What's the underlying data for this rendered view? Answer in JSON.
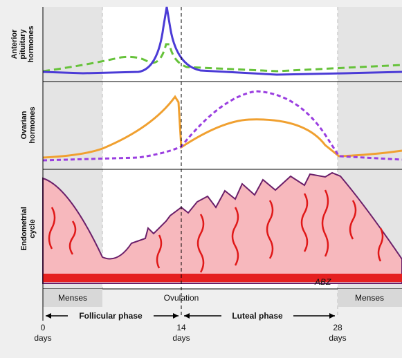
{
  "panels": [
    {
      "label": [
        "Anterior",
        "pituitary",
        "hormones"
      ]
    },
    {
      "label": [
        "Ovarian",
        "hormones"
      ]
    },
    {
      "label": [
        "Endometrial",
        "cycle"
      ]
    }
  ],
  "phases": {
    "menses_start": "Menses",
    "ovulation": "Ovulation",
    "menses_end": "Menses",
    "follicular": "Follicular phase",
    "luteal": "Luteal phase"
  },
  "axis": [
    {
      "number": "0",
      "unit": "days"
    },
    {
      "number": "14",
      "unit": "days"
    },
    {
      "number": "28",
      "unit": "days"
    }
  ],
  "signature": "ABZ"
}
